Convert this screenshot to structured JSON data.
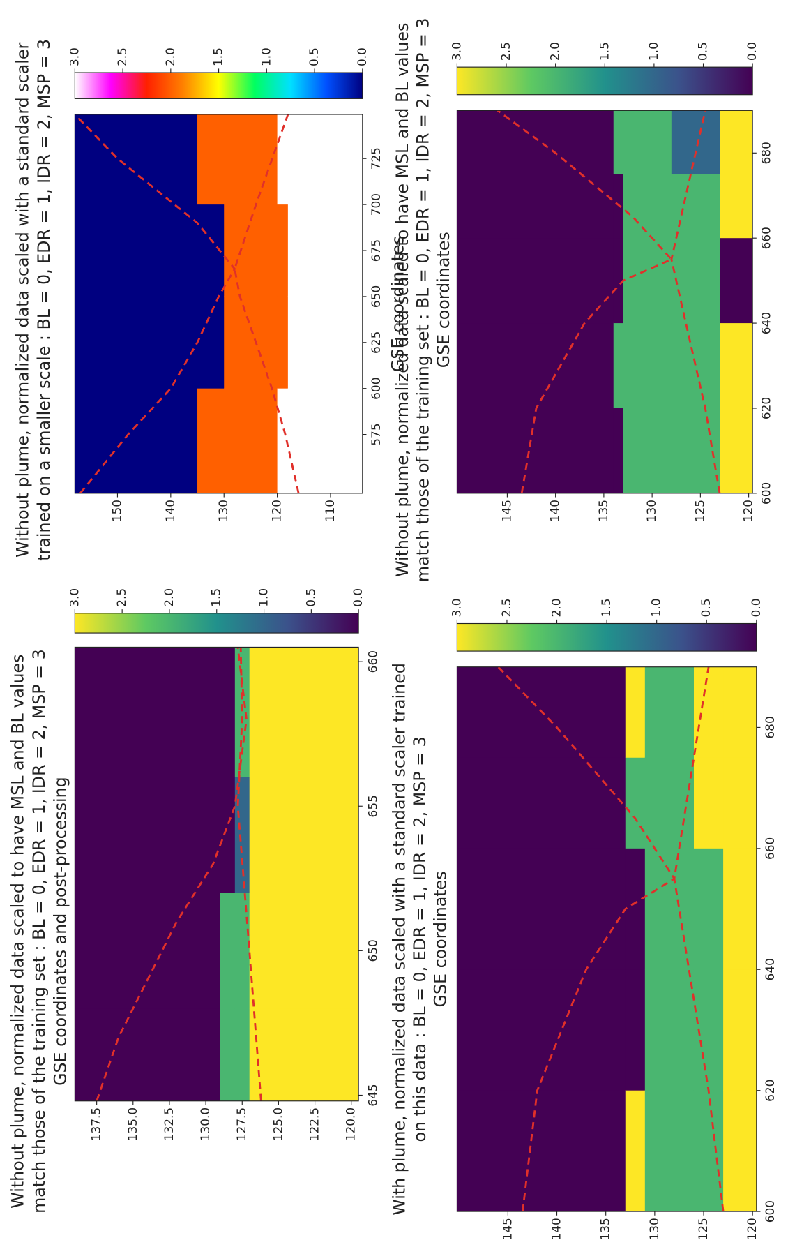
{
  "chart_data": [
    {
      "type": "heatmap",
      "title": [
        "With plume, normalized data scaled with a standard scaler trained",
        "on this data : BL = 0, EDR = 1, IDR = 2, MSP = 3",
        "GSE coordinates"
      ],
      "xlim": [
        600,
        690
      ],
      "ylim": [
        119.6,
        150.2
      ],
      "xticks": [
        600,
        620,
        640,
        660,
        680
      ],
      "yticks": [
        120,
        125,
        130,
        135,
        140,
        145
      ],
      "x_edges": [
        600,
        620,
        640,
        660,
        675,
        690
      ],
      "y_edges": [
        150.2,
        133,
        131,
        126,
        123,
        119.6
      ],
      "z": [
        [
          0,
          0,
          0,
          0,
          0
        ],
        [
          3,
          0,
          0,
          2,
          3
        ],
        [
          2,
          2,
          2,
          2,
          2
        ],
        [
          2,
          2,
          2,
          3,
          3
        ],
        [
          3,
          3,
          3,
          3,
          3
        ]
      ],
      "clim": [
        0,
        3
      ],
      "colormap": [
        "#440154",
        "#3b528b",
        "#21918c",
        "#5ec962",
        "#fde725"
      ],
      "cbar_ticks": [
        {
          "value": 0,
          "label": "0.0"
        },
        {
          "value": 0.5,
          "label": "0.5"
        },
        {
          "value": 1,
          "label": "1.0"
        },
        {
          "value": 1.5,
          "label": "1.5"
        },
        {
          "value": 2,
          "label": "2.0"
        },
        {
          "value": 2.5,
          "label": "2.5"
        },
        {
          "value": 3,
          "label": "3.0"
        }
      ],
      "lines": [
        {
          "color": "#e0302a",
          "x": [
            600,
            620,
            640,
            650,
            655,
            665,
            680,
            690
          ],
          "y": [
            143.5,
            142,
            137,
            133,
            128,
            132,
            140,
            146
          ]
        },
        {
          "color": "#e0302a",
          "x": [
            600,
            620,
            640,
            655,
            670,
            690
          ],
          "y": [
            123,
            124.5,
            126.5,
            128,
            126.5,
            124.5
          ]
        }
      ]
    },
    {
      "type": "heatmap",
      "title": [
        "Without plume, normalized data scaled to have MSL and BL values",
        "match those of the training set : BL = 0, EDR = 1, IDR = 2, MSP = 3",
        "GSE coordinates and post-processing"
      ],
      "xlim": [
        644.8,
        660.5
      ],
      "ylim": [
        119.5,
        139
      ],
      "xticks": [
        645,
        650,
        655,
        660
      ],
      "yticks": [
        {
          "value": 120,
          "label": "120.0"
        },
        {
          "value": 122.5,
          "label": "122.5"
        },
        {
          "value": 125,
          "label": "125.0"
        },
        {
          "value": 127.5,
          "label": "127.5"
        },
        {
          "value": 130,
          "label": "130.0"
        },
        {
          "value": 132.5,
          "label": "132.5"
        },
        {
          "value": 135,
          "label": "135.0"
        },
        {
          "value": 137.5,
          "label": "137.5"
        }
      ],
      "x_edges": [
        644.8,
        648,
        652,
        656,
        660.5
      ],
      "y_edges": [
        139,
        129,
        128,
        127,
        119.5
      ],
      "z": [
        [
          0,
          0,
          0,
          0
        ],
        [
          2,
          2,
          0,
          0
        ],
        [
          2,
          2,
          1,
          2
        ],
        [
          3,
          3,
          3,
          3
        ]
      ],
      "clim": [
        0,
        3
      ],
      "colormap": [
        "#440154",
        "#3b528b",
        "#21918c",
        "#5ec962",
        "#fde725"
      ],
      "cbar_ticks": [
        {
          "value": 0,
          "label": "0.0"
        },
        {
          "value": 0.5,
          "label": "0.5"
        },
        {
          "value": 1,
          "label": "1.0"
        },
        {
          "value": 1.5,
          "label": "1.5"
        },
        {
          "value": 2,
          "label": "2.0"
        },
        {
          "value": 2.5,
          "label": "2.5"
        },
        {
          "value": 3,
          "label": "3.0"
        }
      ],
      "lines": [
        {
          "color": "#e0302a",
          "x": [
            644.8,
            647,
            649,
            651,
            653,
            655,
            658,
            660.5
          ],
          "y": [
            137.5,
            136,
            134,
            132,
            129.5,
            128,
            127.2,
            127.8
          ]
        },
        {
          "color": "#e0302a",
          "x": [
            644.8,
            650,
            655,
            658,
            660.5
          ],
          "y": [
            126.2,
            127,
            127.8,
            127.5,
            127.6
          ]
        }
      ]
    },
    {
      "type": "heatmap",
      "title": [
        "Without plume, normalized data scaled to have MSL and BL values",
        "match those of the training set : BL = 0, EDR = 1, IDR = 2, MSP = 3",
        "GSE coordinates"
      ],
      "xlim": [
        600,
        690
      ],
      "ylim": [
        119.6,
        150.2
      ],
      "xticks": [
        600,
        620,
        640,
        660,
        680
      ],
      "yticks": [
        120,
        125,
        130,
        135,
        140,
        145
      ],
      "x_edges": [
        600,
        620,
        640,
        660,
        675,
        690
      ],
      "y_edges": [
        150.2,
        134,
        133,
        128,
        123,
        119.6
      ],
      "z": [
        [
          0,
          0,
          0,
          0,
          0
        ],
        [
          0,
          2,
          0,
          0,
          2
        ],
        [
          2,
          2,
          2,
          2,
          2
        ],
        [
          2,
          2,
          2,
          2,
          1
        ],
        [
          3,
          3,
          0,
          3,
          3
        ]
      ],
      "clim": [
        0,
        3
      ],
      "colormap": [
        "#440154",
        "#3b528b",
        "#21918c",
        "#5ec962",
        "#fde725"
      ],
      "cbar_ticks": [
        {
          "value": 0,
          "label": "0.0"
        },
        {
          "value": 0.5,
          "label": "0.5"
        },
        {
          "value": 1,
          "label": "1.0"
        },
        {
          "value": 1.5,
          "label": "1.5"
        },
        {
          "value": 2,
          "label": "2.0"
        },
        {
          "value": 2.5,
          "label": "2.5"
        },
        {
          "value": 3,
          "label": "3.0"
        }
      ],
      "lines": [
        {
          "color": "#e0302a",
          "x": [
            600,
            620,
            640,
            650,
            655,
            665,
            680,
            690
          ],
          "y": [
            143.5,
            142,
            137,
            133,
            128,
            132,
            140,
            146
          ]
        },
        {
          "color": "#e0302a",
          "x": [
            600,
            620,
            640,
            655,
            670,
            690
          ],
          "y": [
            123,
            124.5,
            126.5,
            128,
            126.5,
            124.5
          ]
        }
      ]
    },
    {
      "type": "heatmap",
      "title": [
        "Without plume, normalized data scaled with a standard scaler",
        "trained on a smaller scale : BL = 0, EDR = 1, IDR = 2, MSP = 3"
      ],
      "xlabel": "GSE coordinates",
      "xlim": [
        543,
        749
      ],
      "ylim": [
        104,
        158
      ],
      "xticks": [
        575,
        600,
        625,
        650,
        675,
        700,
        725
      ],
      "yticks": [
        110,
        120,
        130,
        140,
        150
      ],
      "x_edges": [
        543,
        600,
        650,
        700,
        749
      ],
      "y_edges": [
        158,
        135,
        130,
        120,
        118,
        104
      ],
      "z": [
        [
          0,
          0,
          0,
          0
        ],
        [
          2,
          0,
          0,
          2
        ],
        [
          2,
          2,
          2,
          2
        ],
        [
          3,
          2,
          2,
          3
        ],
        [
          3,
          3,
          3,
          3
        ]
      ],
      "clim": [
        0,
        3
      ],
      "colormap": [
        "#000080",
        "#0050ff",
        "#00e0ff",
        "#00ff60",
        "#ffff00",
        "#ff8000",
        "#ff2000",
        "#ff00ff",
        "#ffffff"
      ],
      "cbar_ticks": [
        {
          "value": 0,
          "label": "0.0"
        },
        {
          "value": 0.5,
          "label": "0.5"
        },
        {
          "value": 1,
          "label": "1.0"
        },
        {
          "value": 1.5,
          "label": "1.5"
        },
        {
          "value": 2,
          "label": "2.0"
        },
        {
          "value": 2.5,
          "label": "2.5"
        },
        {
          "value": 3,
          "label": "3.0"
        }
      ],
      "lines": [
        {
          "color": "#e0302a",
          "x": [
            543,
            575,
            600,
            625,
            650,
            665,
            690,
            725,
            749
          ],
          "y": [
            157,
            148,
            140,
            135,
            131,
            128,
            135,
            150,
            158
          ]
        },
        {
          "color": "#e0302a",
          "x": [
            543,
            575,
            600,
            650,
            665,
            700,
            749
          ],
          "y": [
            116,
            118.5,
            121,
            127,
            128,
            124,
            118
          ]
        }
      ]
    }
  ]
}
